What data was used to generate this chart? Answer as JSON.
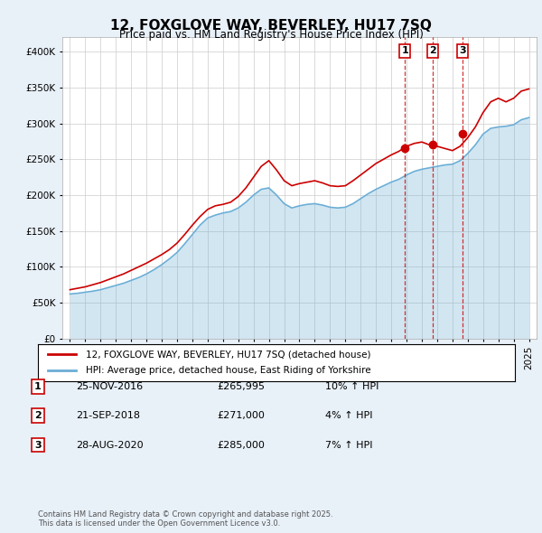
{
  "title": "12, FOXGLOVE WAY, BEVERLEY, HU17 7SQ",
  "subtitle": "Price paid vs. HM Land Registry's House Price Index (HPI)",
  "legend_line1": "12, FOXGLOVE WAY, BEVERLEY, HU17 7SQ (detached house)",
  "legend_line2": "HPI: Average price, detached house, East Riding of Yorkshire",
  "footnote": "Contains HM Land Registry data © Crown copyright and database right 2025.\nThis data is licensed under the Open Government Licence v3.0.",
  "transactions": [
    {
      "num": 1,
      "date": "25-NOV-2016",
      "year": 2016.9,
      "price": 265995,
      "hpi_pct": "10%"
    },
    {
      "num": 2,
      "date": "21-SEP-2018",
      "year": 2018.72,
      "price": 271000,
      "hpi_pct": "4%"
    },
    {
      "num": 3,
      "date": "28-AUG-2020",
      "year": 2020.65,
      "price": 285000,
      "hpi_pct": "7%"
    }
  ],
  "hpi_color": "#6baed6",
  "price_color": "#cc0000",
  "background_color": "#e8f0f8",
  "plot_bg_color": "#ffffff",
  "dashed_line_color": "#cc0000",
  "ylim": [
    0,
    420000
  ],
  "yticks": [
    0,
    50000,
    100000,
    150000,
    200000,
    250000,
    300000,
    350000,
    400000
  ],
  "hpi_data_x": [
    1995,
    1995.5,
    1996,
    1996.5,
    1997,
    1997.5,
    1998,
    1998.5,
    1999,
    1999.5,
    2000,
    2000.5,
    2001,
    2001.5,
    2002,
    2002.5,
    2003,
    2003.5,
    2004,
    2004.5,
    2005,
    2005.5,
    2006,
    2006.5,
    2007,
    2007.5,
    2008,
    2008.5,
    2009,
    2009.5,
    2010,
    2010.5,
    2011,
    2011.5,
    2012,
    2012.5,
    2013,
    2013.5,
    2014,
    2014.5,
    2015,
    2015.5,
    2016,
    2016.5,
    2017,
    2017.5,
    2018,
    2018.5,
    2019,
    2019.5,
    2020,
    2020.5,
    2021,
    2021.5,
    2022,
    2022.5,
    2023,
    2023.5,
    2024,
    2024.5,
    2025
  ],
  "hpi_data_y": [
    62000,
    63000,
    64500,
    66000,
    68000,
    71000,
    74000,
    77000,
    81000,
    85000,
    90000,
    96000,
    103000,
    111000,
    120000,
    132000,
    145000,
    158000,
    168000,
    172000,
    175000,
    177000,
    182000,
    190000,
    200000,
    208000,
    210000,
    200000,
    188000,
    182000,
    185000,
    187000,
    188000,
    186000,
    183000,
    182000,
    183000,
    188000,
    195000,
    202000,
    208000,
    213000,
    218000,
    222000,
    228000,
    233000,
    236000,
    238000,
    240000,
    242000,
    243000,
    248000,
    258000,
    270000,
    285000,
    293000,
    295000,
    296000,
    298000,
    305000,
    308000
  ],
  "price_data_x": [
    1995,
    1995.5,
    1996,
    1996.5,
    1997,
    1997.5,
    1998,
    1998.5,
    1999,
    1999.5,
    2000,
    2000.5,
    2001,
    2001.5,
    2002,
    2002.5,
    2003,
    2003.5,
    2004,
    2004.5,
    2005,
    2005.5,
    2006,
    2006.5,
    2007,
    2007.5,
    2008,
    2008.5,
    2009,
    2009.5,
    2010,
    2010.5,
    2011,
    2011.5,
    2012,
    2012.5,
    2013,
    2013.5,
    2014,
    2014.5,
    2015,
    2015.5,
    2016,
    2016.5,
    2017,
    2017.5,
    2018,
    2018.5,
    2019,
    2019.5,
    2020,
    2020.5,
    2021,
    2021.5,
    2022,
    2022.5,
    2023,
    2023.5,
    2024,
    2024.5,
    2025
  ],
  "price_data_y": [
    68000,
    70000,
    72000,
    75000,
    78000,
    82000,
    86000,
    90000,
    95000,
    100000,
    105000,
    111000,
    117000,
    124000,
    133000,
    145000,
    158000,
    170000,
    180000,
    185000,
    187000,
    190000,
    198000,
    210000,
    225000,
    240000,
    248000,
    235000,
    220000,
    213000,
    216000,
    218000,
    220000,
    217000,
    213000,
    212000,
    213000,
    220000,
    228000,
    236000,
    244000,
    250000,
    256000,
    261000,
    268000,
    272000,
    274000,
    270000,
    268000,
    265000,
    262000,
    268000,
    280000,
    295000,
    315000,
    330000,
    335000,
    330000,
    335000,
    345000,
    348000
  ]
}
